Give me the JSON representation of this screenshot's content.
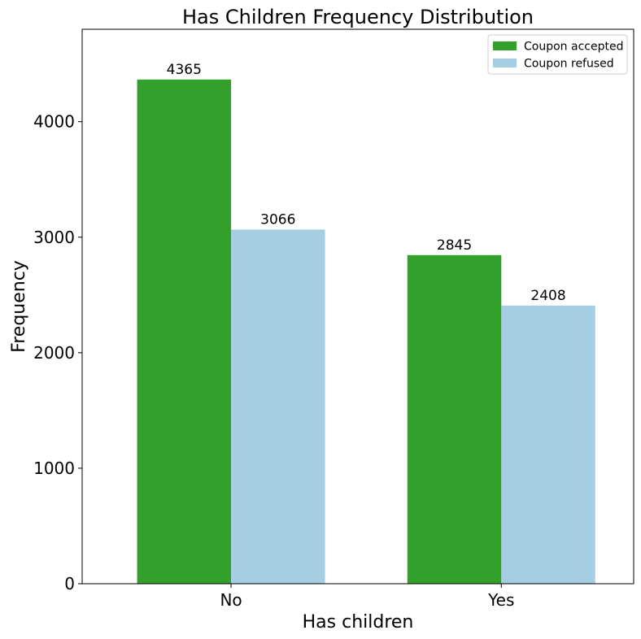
{
  "chart_data": {
    "type": "bar",
    "title": "Has Children Frequency Distribution",
    "xlabel": "Has children",
    "ylabel": "Frequency",
    "categories": [
      "No",
      "Yes"
    ],
    "series": [
      {
        "name": "Coupon accepted",
        "color": "#33a02c",
        "values": [
          4365,
          2845
        ]
      },
      {
        "name": "Coupon refused",
        "color": "#a6cee3",
        "values": [
          3066,
          2408
        ]
      }
    ],
    "ylim": [
      0,
      4800
    ],
    "yticks": [
      0,
      1000,
      2000,
      3000,
      4000
    ],
    "grid": false,
    "legend_position": "top-right",
    "data_labels": true
  }
}
